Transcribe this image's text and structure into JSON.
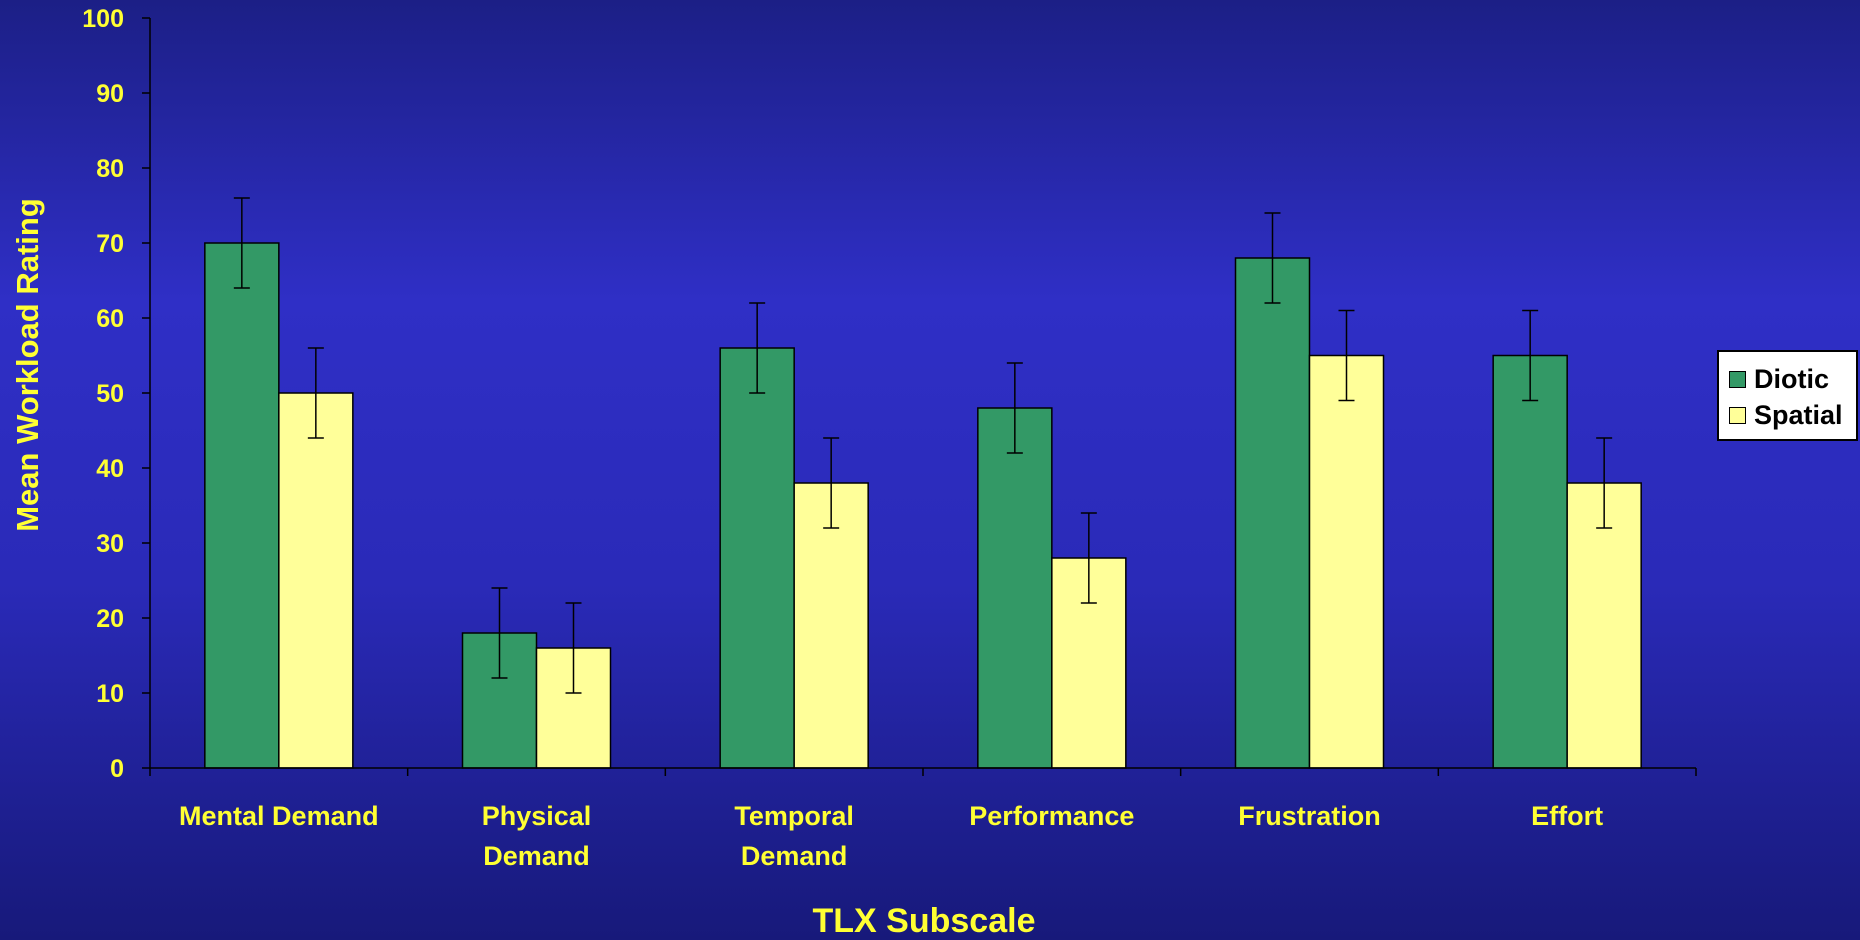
{
  "colors": {
    "axis_text": "#ffff33",
    "axis_line": "#000000",
    "diotic": "#339966",
    "spatial": "#ffff99"
  },
  "chart_data": {
    "type": "bar",
    "title": "",
    "xlabel": "TLX Subscale",
    "ylabel": "Mean Workload Rating",
    "ylim": [
      0,
      100
    ],
    "yticks": [
      0,
      10,
      20,
      30,
      40,
      50,
      60,
      70,
      80,
      90,
      100
    ],
    "categories": [
      [
        "Mental Demand"
      ],
      [
        "Physical",
        "Demand"
      ],
      [
        "Temporal",
        "Demand"
      ],
      [
        "Performance"
      ],
      [
        "Frustration"
      ],
      [
        "Effort"
      ]
    ],
    "series": [
      {
        "name": "Diotic",
        "color": "#339966",
        "values": [
          70,
          18,
          56,
          48,
          68,
          55
        ],
        "errors": [
          6,
          6,
          6,
          6,
          6,
          6
        ]
      },
      {
        "name": "Spatial",
        "color": "#ffff99",
        "values": [
          50,
          16,
          38,
          28,
          55,
          38
        ],
        "errors": [
          6,
          6,
          6,
          6,
          6,
          6
        ]
      }
    ],
    "grid": false,
    "legend": "right"
  }
}
